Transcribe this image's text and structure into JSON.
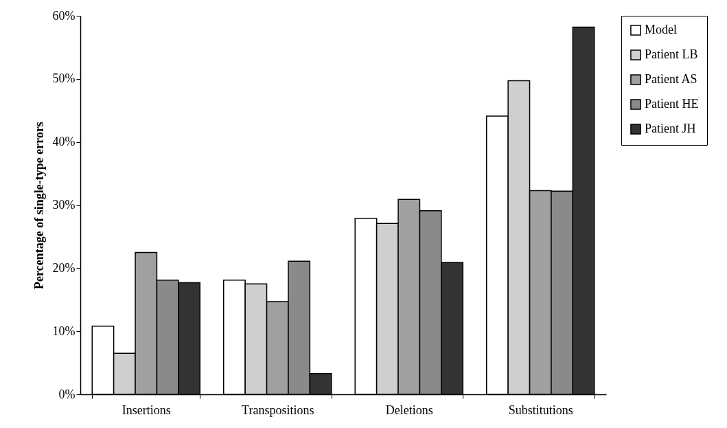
{
  "chart_data": {
    "type": "bar",
    "ylabel": "Percentage of single-type errors",
    "categories": [
      "Insertions",
      "Transpositions",
      "Deletions",
      "Substitutions"
    ],
    "series": [
      {
        "name": "Model",
        "color": "#ffffff",
        "values": [
          10.8,
          18.1,
          27.9,
          44.1
        ]
      },
      {
        "name": "Patient LB",
        "color": "#cfcfcf",
        "values": [
          6.5,
          17.5,
          27.1,
          49.7
        ]
      },
      {
        "name": "Patient AS",
        "color": "#a0a0a0",
        "values": [
          22.5,
          14.7,
          30.9,
          32.3
        ]
      },
      {
        "name": "Patient HE",
        "color": "#8a8a8a",
        "values": [
          18.1,
          21.1,
          29.1,
          32.2
        ]
      },
      {
        "name": "Patient JH",
        "color": "#333333",
        "values": [
          17.7,
          3.3,
          20.9,
          58.2
        ]
      }
    ],
    "ylim": [
      0,
      60
    ],
    "yticks": [
      {
        "value": 0,
        "label": "0%"
      },
      {
        "value": 10,
        "label": "10%"
      },
      {
        "value": 20,
        "label": "20%"
      },
      {
        "value": 30,
        "label": "30%"
      },
      {
        "value": 40,
        "label": "40%"
      },
      {
        "value": 50,
        "label": "50%"
      },
      {
        "value": 60,
        "label": "60%"
      }
    ],
    "grid": false,
    "legend": "right"
  }
}
